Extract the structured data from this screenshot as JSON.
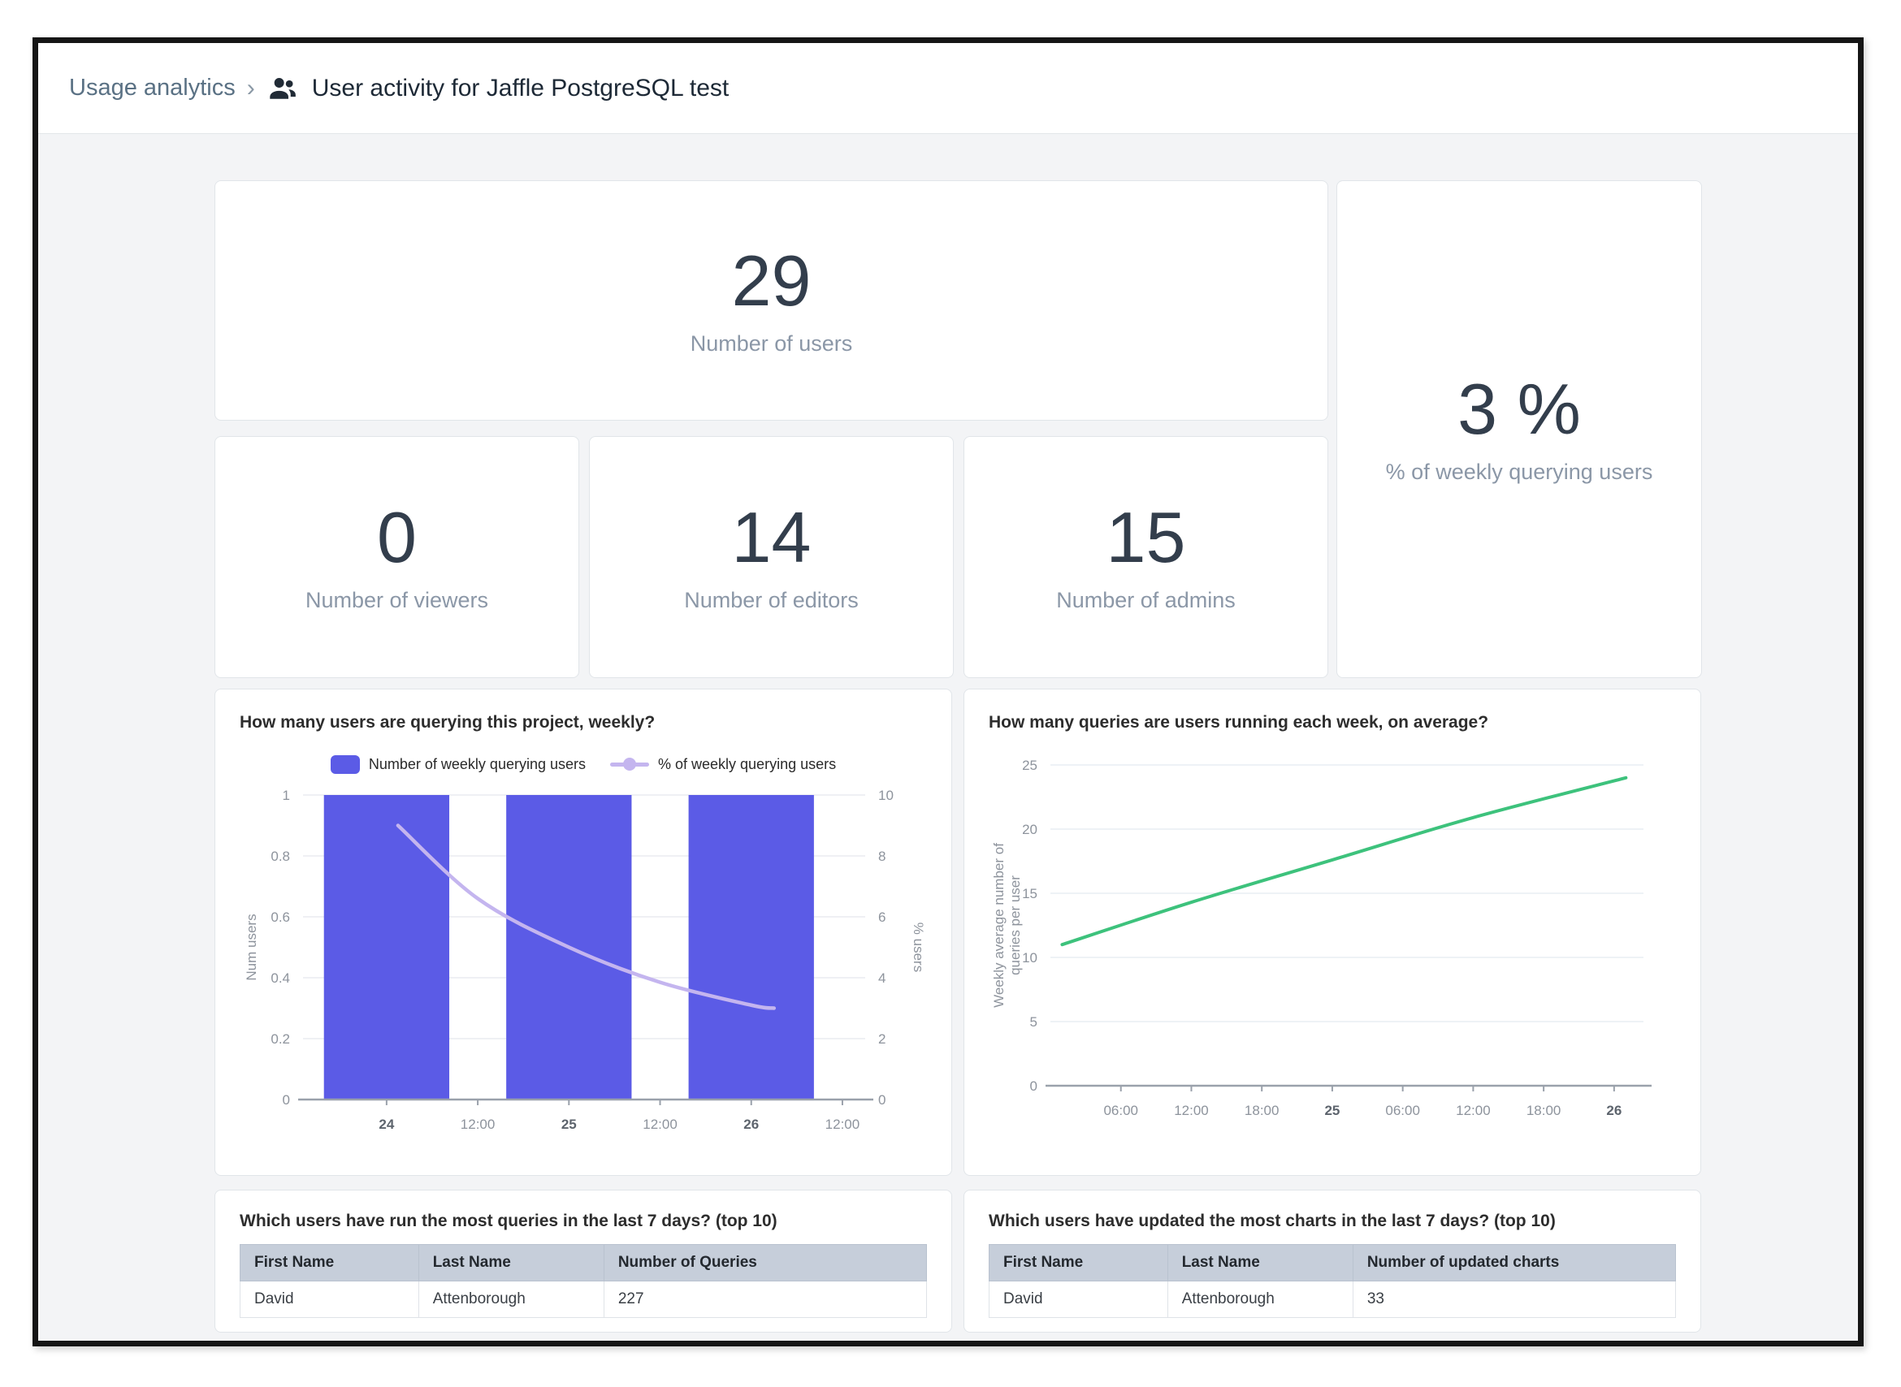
{
  "header": {
    "breadcrumb": "Usage analytics",
    "separator": "›",
    "title": "User activity for Jaffle PostgreSQL test"
  },
  "stats": {
    "users": {
      "value": "29",
      "label": "Number of users"
    },
    "viewers": {
      "value": "0",
      "label": "Number of viewers"
    },
    "editors": {
      "value": "14",
      "label": "Number of editors"
    },
    "admins": {
      "value": "15",
      "label": "Number of admins"
    },
    "weekly_querying": {
      "value": "3 %",
      "label": "% of weekly querying users"
    }
  },
  "colors": {
    "bar_purple": "#5b5be6",
    "percent_line_purple": "#c4b5ef",
    "green_line": "#3dc27c",
    "link_slate": "#5a7184"
  },
  "chart_data": [
    {
      "type": "combo-bar-line",
      "title": "How many users are querying this project, weekly?",
      "legend": [
        {
          "label": "Number of weekly querying users",
          "marker": "bar",
          "color": "#5b5be6"
        },
        {
          "label": "% of weekly querying users",
          "marker": "line-dot",
          "color": "#c4b5ef"
        }
      ],
      "x_axis": {
        "ticks": [
          "24",
          "12:00",
          "25",
          "12:00",
          "26",
          "12:00"
        ],
        "tick_hours": [
          0,
          12,
          24,
          36,
          48,
          60
        ],
        "bold": [
          true,
          false,
          true,
          false,
          true,
          false
        ],
        "domain_hours": [
          -11,
          63
        ]
      },
      "y_left": {
        "title": "Num users",
        "ticks": [
          0,
          0.2,
          0.4,
          0.6,
          0.8,
          1
        ],
        "range": [
          0,
          1
        ]
      },
      "y_right": {
        "title": "% users",
        "ticks": [
          0,
          2,
          4,
          6,
          8,
          10
        ],
        "range": [
          0,
          10
        ]
      },
      "bars": {
        "axis": "left",
        "color": "#5b5be6",
        "categories": [
          "24",
          "25",
          "26"
        ],
        "center_hours": [
          0,
          24,
          48
        ],
        "width_hours": 16.5,
        "values": [
          1,
          1,
          1
        ]
      },
      "line": {
        "axis": "right",
        "name": "% of weekly querying users",
        "color": "#c4b5ef",
        "points_hours": [
          1.5,
          12,
          24,
          36,
          48,
          51
        ],
        "values": [
          9,
          6.6,
          5,
          3.85,
          3.1,
          3
        ]
      }
    },
    {
      "type": "line",
      "title": "How many queries are users running each week, on average?",
      "series": [
        {
          "name": "Weekly average number of queries per user",
          "color": "#3dc27c",
          "points_hours": [
            1,
            12,
            24,
            36,
            49
          ],
          "values": [
            11,
            14.3,
            17.6,
            20.9,
            24
          ]
        }
      ],
      "x_axis": {
        "ticks": [
          "06:00",
          "12:00",
          "18:00",
          "25",
          "06:00",
          "12:00",
          "18:00",
          "26"
        ],
        "tick_hours": [
          6,
          12,
          18,
          24,
          30,
          36,
          42,
          48
        ],
        "bold": [
          false,
          false,
          false,
          true,
          false,
          false,
          false,
          true
        ],
        "domain_hours": [
          0,
          50.5
        ]
      },
      "y_axis": {
        "title_lines": [
          "Weekly average number of",
          "queries per user"
        ],
        "ticks": [
          0,
          5,
          10,
          15,
          20,
          25
        ],
        "range": [
          0,
          25
        ]
      }
    }
  ],
  "tables": [
    {
      "title": "Which users have run the most queries in the last 7 days? (top 10)",
      "headers": [
        "First Name",
        "Last Name",
        "Number of Queries"
      ],
      "rows": [
        [
          "David",
          "Attenborough",
          "227"
        ]
      ]
    },
    {
      "title": "Which users have updated the most charts in the last 7 days? (top 10)",
      "headers": [
        "First Name",
        "Last Name",
        "Number of updated charts"
      ],
      "rows": [
        [
          "David",
          "Attenborough",
          "33"
        ]
      ]
    }
  ]
}
